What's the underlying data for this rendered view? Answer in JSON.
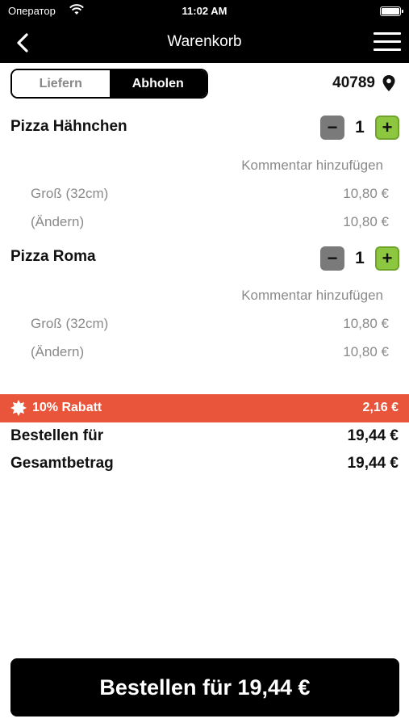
{
  "status_bar": {
    "carrier": "Оператор",
    "time": "11:02 AM"
  },
  "nav": {
    "title": "Warenkorb"
  },
  "segment": {
    "options": [
      "Liefern",
      "Abholen"
    ],
    "selected": "Abholen"
  },
  "location": {
    "zip": "40789"
  },
  "cart_items": [
    {
      "name": "Pizza Hähnchen",
      "quantity": "1",
      "comment_link": "Kommentar hinzufügen",
      "options": [
        {
          "label": "Groß (32cm)",
          "price": "10,80 €"
        },
        {
          "label": "(Ändern)",
          "price": "10,80 €"
        }
      ]
    },
    {
      "name": "Pizza Roma",
      "quantity": "1",
      "comment_link": "Kommentar hinzufügen",
      "options": [
        {
          "label": "Groß (32cm)",
          "price": "10,80 €"
        },
        {
          "label": "(Ändern)",
          "price": "10,80 €"
        }
      ]
    }
  ],
  "discount": {
    "label": "10% Rabatt",
    "amount": "2,16 €",
    "color": "#e8553a"
  },
  "summary": {
    "order_for_label": "Bestellen für",
    "order_for_value": "19,44 €",
    "total_label": "Gesamtbetrag",
    "total_value": "19,44 €"
  },
  "order_button": {
    "label": "Bestellen für 19,44 €"
  },
  "colors": {
    "accent_green": "#8dc63f",
    "minus_gray": "#7a7a7a"
  }
}
